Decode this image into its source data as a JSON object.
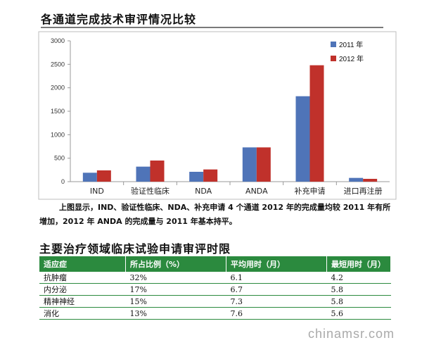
{
  "heading1": "各通道完成技术审评情况比较",
  "chart_data": {
    "type": "bar",
    "categories": [
      "IND",
      "验证性临床",
      "NDA",
      "ANDA",
      "补充申请",
      "进口再注册"
    ],
    "series": [
      {
        "name": "2011 年",
        "values": [
          190,
          320,
          210,
          730,
          1820,
          80
        ],
        "color": "#4f74b8"
      },
      {
        "name": "2012 年",
        "values": [
          240,
          450,
          260,
          730,
          2480,
          60
        ],
        "color": "#c0312b"
      }
    ],
    "ylim": [
      0,
      3000
    ],
    "yticks": [
      "0",
      "500",
      "1000",
      "1500",
      "2000",
      "2500",
      "3000"
    ],
    "grid": false,
    "legend": "top-right"
  },
  "caption": "上图显示，IND、验证性临床、NDA、补充申请 4 个通道 2012 年的完成量均较 2011 年有所增加，2012 年 ANDA 的完成量与 2011 年基本持平。",
  "heading2": "主要治疗领域临床试验申请审评时限",
  "table": {
    "headers": [
      "适应症",
      "所占比例（%）",
      "平均用时（月）",
      "最短用时（月）"
    ],
    "rows": [
      [
        "抗肿瘤",
        "32%",
        "6.1",
        "4.2"
      ],
      [
        "内分泌",
        "17%",
        "6.7",
        "5.8"
      ],
      [
        "精神神经",
        "15%",
        "7.3",
        "5.8"
      ],
      [
        "消化",
        "13%",
        "7.6",
        "5.6"
      ]
    ]
  },
  "watermark": "chinamsr.com"
}
